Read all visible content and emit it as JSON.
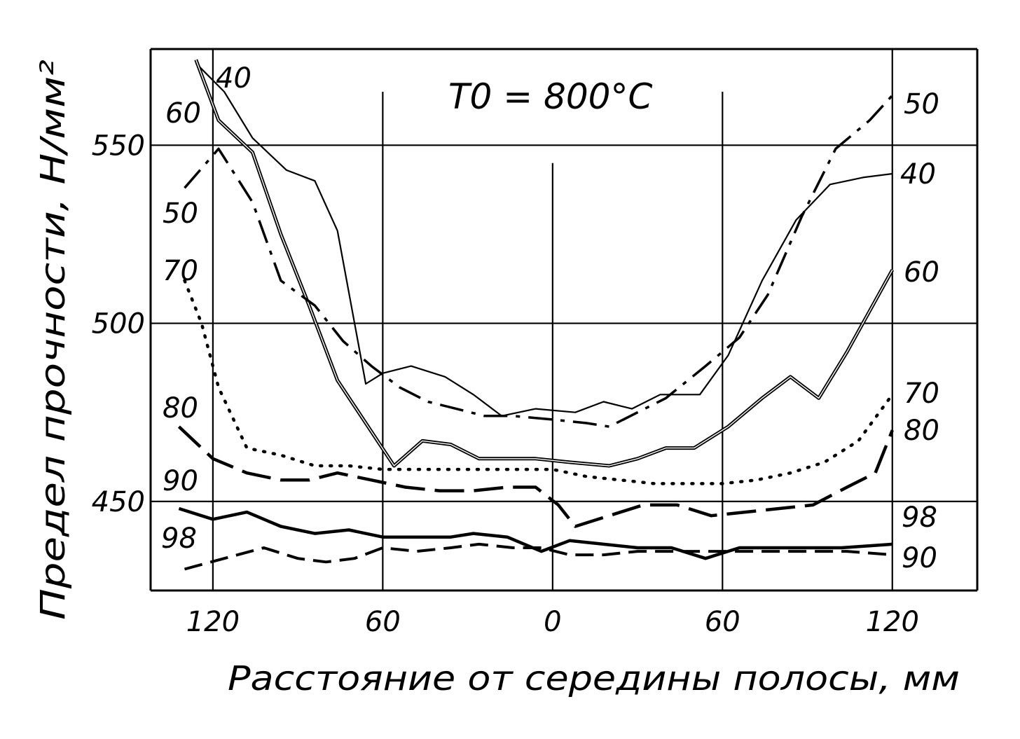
{
  "chart_data": {
    "type": "line",
    "annotation": "T0 = 800°C",
    "xlabel": "Расстояние от середины полосы, мм",
    "ylabel": "Предел прочности, Н/мм²",
    "x_ticks": [
      {
        "x": -120,
        "label": "120"
      },
      {
        "x": -60,
        "label": "60"
      },
      {
        "x": 0,
        "label": "0"
      },
      {
        "x": 60,
        "label": "60"
      },
      {
        "x": 120,
        "label": "120"
      }
    ],
    "y_ticks": [
      {
        "y": 550,
        "label": "550"
      },
      {
        "y": 500,
        "label": "500"
      },
      {
        "y": 450,
        "label": "450"
      }
    ],
    "xlim": [
      -142,
      150
    ],
    "ylim": [
      425,
      577
    ],
    "grid": true,
    "series": [
      {
        "name": "40",
        "style": "thin",
        "left_label": "40",
        "right_label": "40",
        "x": [
          -126,
          -116,
          -106,
          -94,
          -84,
          -76,
          -66,
          -60,
          -50,
          -38,
          -28,
          -18,
          -6,
          8,
          18,
          28,
          38,
          52,
          62,
          74,
          86,
          98,
          110,
          120
        ],
        "y": [
          573,
          565,
          552,
          543,
          540,
          526,
          483,
          486,
          488,
          485,
          480,
          474,
          476,
          475,
          478,
          476,
          480,
          480,
          491,
          512,
          529,
          539,
          541,
          542
        ]
      },
      {
        "name": "60",
        "style": "double",
        "left_label": "60",
        "right_label": "60",
        "x": [
          -126,
          -118,
          -106,
          -96,
          -86,
          -76,
          -66,
          -56,
          -46,
          -36,
          -26,
          -16,
          -6,
          6,
          20,
          30,
          40,
          50,
          62,
          74,
          84,
          94,
          104,
          120
        ],
        "y": [
          574,
          557,
          548,
          525,
          505,
          484,
          472,
          460,
          467,
          466,
          462,
          462,
          462,
          461,
          460,
          462,
          465,
          465,
          471,
          479,
          485,
          479,
          492,
          515
        ]
      },
      {
        "name": "50",
        "style": "dash-dot",
        "left_label": "50",
        "right_label": "50",
        "x": [
          -130,
          -118,
          -106,
          -96,
          -84,
          -74,
          -64,
          -54,
          -44,
          -34,
          -24,
          -14,
          0,
          12,
          20,
          30,
          40,
          54,
          66,
          76,
          88,
          100,
          112,
          120
        ],
        "y": [
          538,
          549,
          534,
          512,
          505,
          495,
          488,
          482,
          478,
          476,
          474,
          474,
          473,
          472,
          471,
          475,
          479,
          488,
          496,
          508,
          530,
          549,
          557,
          564
        ]
      },
      {
        "name": "70",
        "style": "dotted",
        "left_label": "70",
        "right_label": "70",
        "x": [
          -130,
          -124,
          -118,
          -108,
          -96,
          -84,
          -72,
          -60,
          -48,
          -36,
          -24,
          -12,
          0,
          12,
          24,
          36,
          48,
          60,
          72,
          84,
          96,
          108,
          120
        ],
        "y": [
          512,
          500,
          482,
          465,
          463,
          460,
          460,
          459,
          459,
          459,
          459,
          459,
          459,
          457,
          456,
          455,
          455,
          455,
          456,
          458,
          461,
          467,
          480
        ]
      },
      {
        "name": "80",
        "style": "long-dash",
        "left_label": "80",
        "right_label": "80",
        "x": [
          -132,
          -120,
          -108,
          -96,
          -86,
          -76,
          -64,
          -52,
          -40,
          -28,
          -16,
          -6,
          2,
          8,
          20,
          32,
          44,
          56,
          68,
          80,
          92,
          104,
          114,
          120
        ],
        "y": [
          471,
          462,
          458,
          456,
          456,
          458,
          456,
          454,
          453,
          453,
          454,
          454,
          449,
          443,
          446,
          449,
          449,
          446,
          447,
          448,
          449,
          454,
          458,
          470
        ]
      },
      {
        "name": "90",
        "style": "medium-dash",
        "left_label": "90",
        "right_label": "90",
        "x": [
          -130,
          -116,
          -102,
          -90,
          -80,
          -70,
          -60,
          -48,
          -36,
          -26,
          -14,
          -4,
          6,
          18,
          30,
          42,
          54,
          66,
          78,
          90,
          104,
          120
        ],
        "y": [
          431,
          434,
          437,
          434,
          433,
          434,
          437,
          436,
          437,
          438,
          437,
          437,
          435,
          435,
          436,
          436,
          436,
          436,
          436,
          436,
          436,
          435
        ]
      },
      {
        "name": "98",
        "style": "thick",
        "left_label": "98",
        "right_label": "98",
        "x": [
          -132,
          -120,
          -108,
          -96,
          -84,
          -72,
          -60,
          -48,
          -36,
          -28,
          -16,
          -4,
          6,
          18,
          30,
          42,
          54,
          66,
          78,
          90,
          102,
          120
        ],
        "y": [
          448,
          445,
          447,
          443,
          441,
          442,
          440,
          440,
          440,
          441,
          440,
          436,
          439,
          438,
          437,
          437,
          434,
          437,
          437,
          437,
          437,
          438
        ]
      }
    ]
  }
}
